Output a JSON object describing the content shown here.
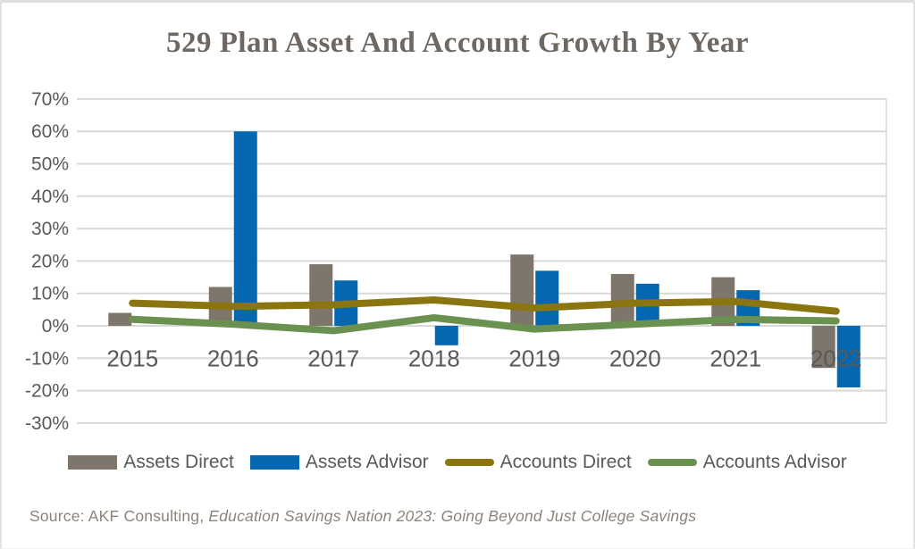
{
  "chart_data": {
    "type": "combo-bar-line",
    "title": "529 Plan Asset And Account Growth By Year",
    "categories": [
      "2015",
      "2016",
      "2017",
      "2018",
      "2019",
      "2020",
      "2021",
      "2022"
    ],
    "series": [
      {
        "name": "Assets Direct",
        "key": "assets_direct",
        "type": "bar",
        "values": [
          4,
          12,
          19,
          0,
          22,
          16,
          15,
          -13
        ]
      },
      {
        "name": "Assets Advisor",
        "key": "assets_advisor",
        "type": "bar",
        "values": [
          0,
          60,
          14,
          -6,
          17,
          13,
          11,
          -19
        ]
      },
      {
        "name": "Accounts Direct",
        "key": "accounts_direct",
        "type": "line",
        "values": [
          7,
          6,
          6.5,
          8,
          5.5,
          7,
          7.5,
          4.5
        ]
      },
      {
        "name": "Accounts Advisor",
        "key": "accounts_advisor",
        "type": "line",
        "values": [
          2,
          0.5,
          -1.5,
          2.5,
          -1,
          0.5,
          2,
          1.5
        ]
      }
    ],
    "ylim": [
      -30,
      70
    ],
    "ytick_step": 10,
    "ytick_format": "percent",
    "grid": "horizontal",
    "legend_position": "bottom"
  },
  "colors": {
    "assets_direct": "#7E766A",
    "assets_advisor": "#0467AF",
    "accounts_direct": "#8A7510",
    "accounts_advisor": "#6A9150",
    "gridline": "#D9D9D9",
    "axis_text": "#595959",
    "title_text": "#6F6862",
    "source_text": "#8C847B"
  },
  "source": {
    "prefix": "Source: AKF Consulting, ",
    "italic": "Education Savings Nation 2023: Going Beyond Just College Savings"
  }
}
